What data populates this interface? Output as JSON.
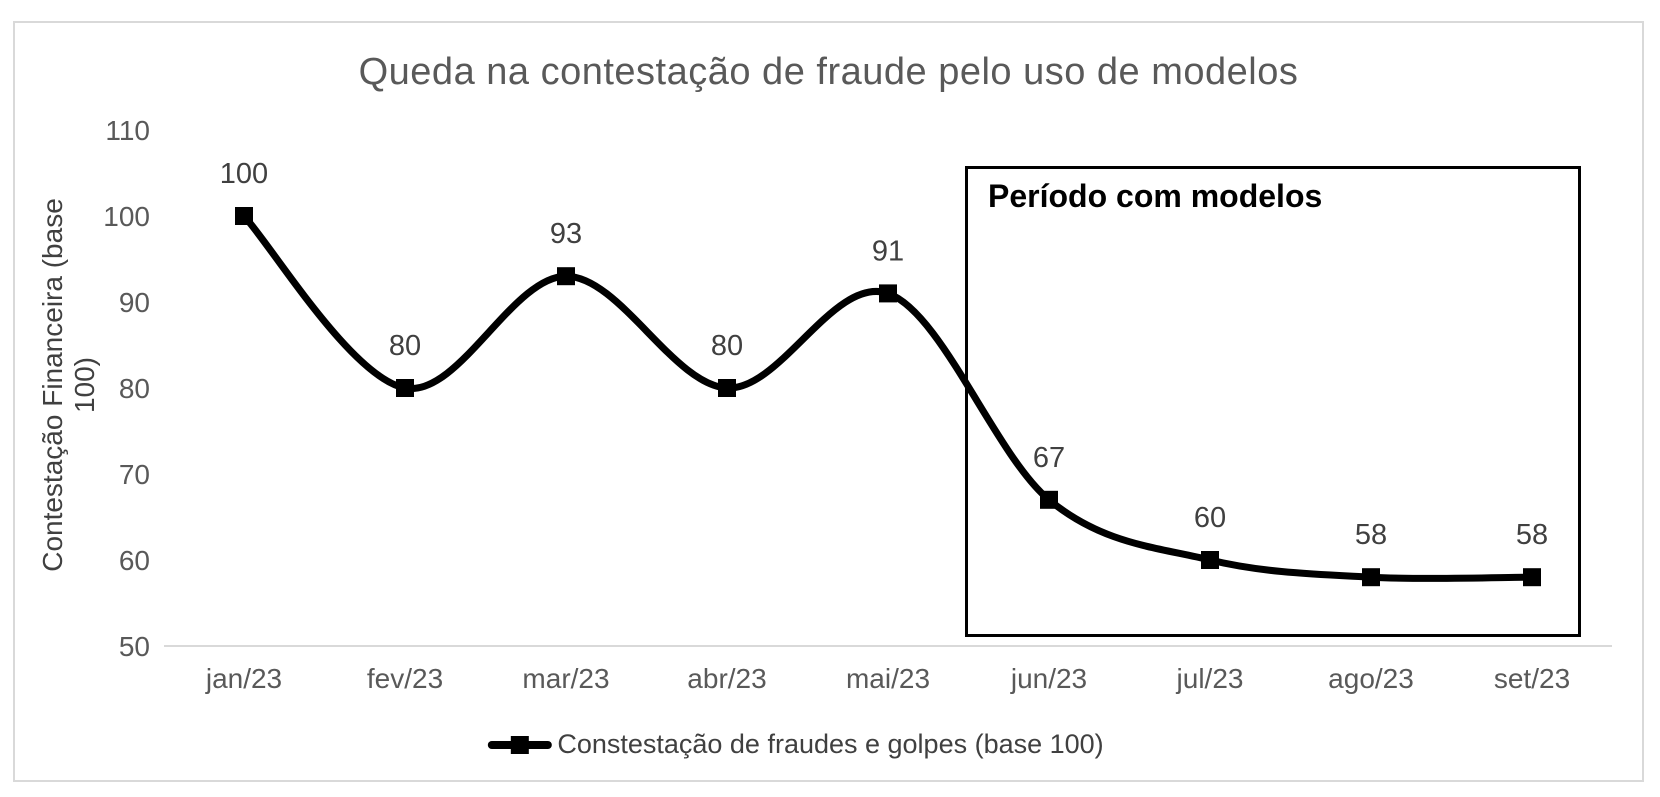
{
  "chart": {
    "title": "Queda na contestação de fraude pelo uso de modelos",
    "y_axis_title": "Contestação Financeira (base 100)",
    "annotation_label": "Período com modelos",
    "legend_label": "Constestação de fraudes e golpes (base 100)"
  },
  "chart_data": {
    "type": "line",
    "title": "Queda na contestação de fraude pelo uso de modelos",
    "categories": [
      "jan/23",
      "fev/23",
      "mar/23",
      "abr/23",
      "mai/23",
      "jun/23",
      "jul/23",
      "ago/23",
      "set/23"
    ],
    "series": [
      {
        "name": "Constestação de fraudes e golpes (base 100)",
        "values": [
          100,
          80,
          93,
          80,
          91,
          67,
          60,
          58,
          58
        ]
      }
    ],
    "data_labels": [
      100,
      80,
      93,
      80,
      91,
      67,
      60,
      58,
      58
    ],
    "xlabel": "",
    "ylabel": "Contestação Financeira (base 100)",
    "ylim": [
      50,
      110
    ],
    "yticks": [
      110,
      100,
      90,
      80,
      70,
      60,
      50
    ],
    "grid": false,
    "smooth": true,
    "marker": "square",
    "legend_position": "bottom",
    "annotations": [
      {
        "text": "Período com modelos",
        "covers_categories": [
          "jun/23",
          "jul/23",
          "ago/23",
          "set/23"
        ],
        "shape": "rectangle"
      }
    ],
    "colors": {
      "line": "#000000",
      "marker": "#000000",
      "axis_line": "#d9d9d9",
      "tick_label": "#595959",
      "data_label": "#404040",
      "title": "#595959",
      "annotation_border": "#000000",
      "figure_border": "#d9d9d9",
      "background": "#ffffff"
    }
  }
}
